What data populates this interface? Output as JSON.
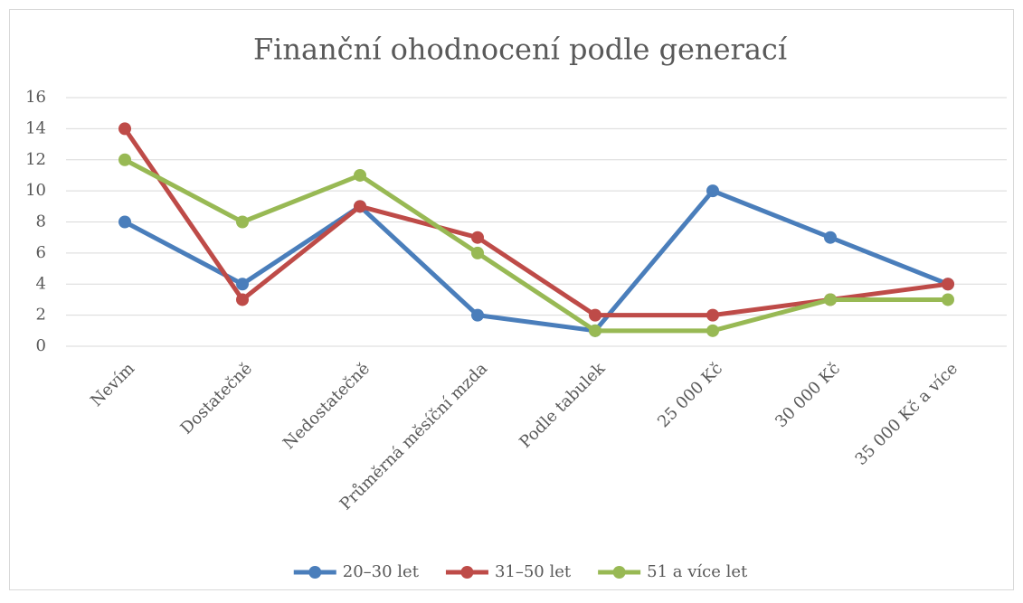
{
  "chart_data": {
    "type": "line",
    "title": "Finanční ohodnocení podle generací",
    "categories": [
      "Nevím",
      "Dostatečně",
      "Nedostatečně",
      "Průměrná měsíční mzda",
      "Podle tabulek",
      "25 000 Kč",
      "30 000 Kč",
      "35 000 Kč a více"
    ],
    "series": [
      {
        "name": "20–30 let",
        "color": "#4a7ebb",
        "values": [
          8,
          4,
          9,
          2,
          1,
          10,
          7,
          4
        ]
      },
      {
        "name": "31–50 let",
        "color": "#be4b48",
        "values": [
          14,
          3,
          9,
          7,
          2,
          2,
          3,
          4
        ]
      },
      {
        "name": "51 a více let",
        "color": "#98b954",
        "values": [
          12,
          8,
          11,
          6,
          1,
          1,
          3,
          3
        ]
      }
    ],
    "ylim": [
      0,
      16
    ],
    "yticks": [
      0,
      2,
      4,
      6,
      8,
      10,
      12,
      14,
      16
    ],
    "grid": true,
    "legend": "bottom"
  }
}
